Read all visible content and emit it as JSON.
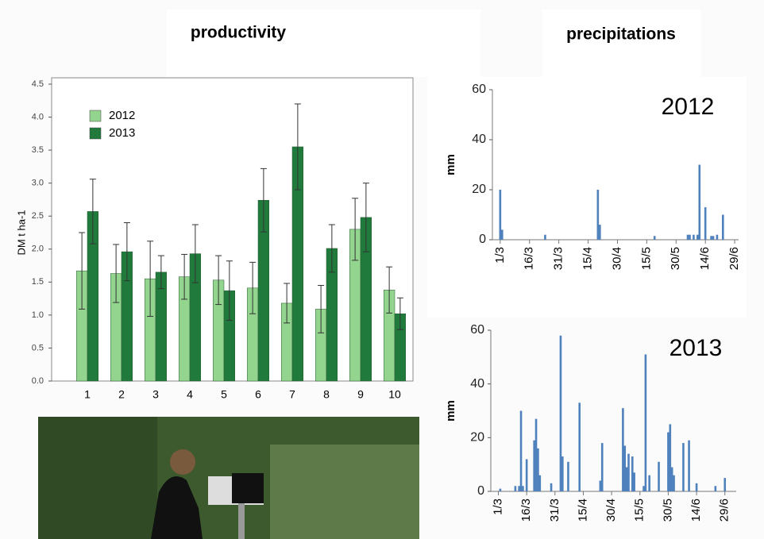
{
  "header": {
    "left": "productivity",
    "right": "precipitations"
  },
  "chart_data": [
    {
      "type": "bar",
      "ylabel": "DM t ha-1",
      "categories": [
        "1",
        "2",
        "3",
        "4",
        "5",
        "6",
        "7",
        "8",
        "9",
        "10"
      ],
      "series": [
        {
          "name": "2012",
          "color": "#93d48f",
          "values": [
            1.67,
            1.63,
            1.55,
            1.58,
            1.53,
            1.41,
            1.18,
            1.09,
            2.3,
            1.38
          ],
          "errors": [
            0.58,
            0.44,
            0.57,
            0.34,
            0.37,
            0.39,
            0.3,
            0.36,
            0.47,
            0.35
          ]
        },
        {
          "name": "2013",
          "color": "#1f7a3c",
          "values": [
            2.57,
            1.96,
            1.65,
            1.93,
            1.37,
            2.74,
            3.55,
            2.01,
            2.48,
            1.02
          ],
          "errors": [
            0.49,
            0.44,
            0.25,
            0.44,
            0.45,
            0.48,
            0.65,
            0.36,
            0.52,
            0.24
          ]
        }
      ],
      "ylim": [
        0,
        4.5
      ],
      "yticks": [
        {
          "value": 0,
          "label": "0.0"
        },
        0.5,
        {
          "value": 1,
          "label": "1.0"
        },
        1.5,
        {
          "value": 2,
          "label": "2.0"
        },
        2.5,
        {
          "value": 3,
          "label": "3.0"
        },
        3.5,
        {
          "value": 4,
          "label": "4.0"
        },
        4.5
      ],
      "legend": "upper left"
    },
    {
      "type": "bar",
      "title": "2012",
      "ylabel": "mm",
      "color": "#4f81bd",
      "x": [
        0,
        1,
        23,
        50,
        51,
        79,
        96,
        97,
        99,
        101,
        102,
        105,
        108,
        109,
        111,
        114
      ],
      "values": [
        20,
        4,
        2,
        20,
        6,
        1.5,
        2,
        2,
        2,
        2,
        30,
        13,
        1.5,
        1.5,
        2,
        10
      ],
      "xlim": [
        -4,
        122
      ],
      "xticks": [
        {
          "value": 0,
          "label": "1/3"
        },
        {
          "value": 15,
          "label": "16/3"
        },
        {
          "value": 30,
          "label": "31/3"
        },
        {
          "value": 45,
          "label": "15/4"
        },
        {
          "value": 60,
          "label": "30/4"
        },
        {
          "value": 75,
          "label": "15/5"
        },
        {
          "value": 90,
          "label": "30/5"
        },
        {
          "value": 105,
          "label": "14/6"
        },
        {
          "value": 120,
          "label": "29/6"
        }
      ],
      "ylim": [
        0,
        60
      ],
      "yticks": [
        0,
        20,
        40,
        60
      ]
    },
    {
      "type": "bar",
      "title": "2013",
      "ylabel": "mm",
      "color": "#4f81bd",
      "x": [
        1,
        9,
        11,
        12,
        13,
        15,
        19,
        20,
        21,
        22,
        28,
        33,
        34,
        37,
        43,
        54,
        55,
        66,
        67,
        68,
        69,
        71,
        72,
        77,
        78,
        80,
        85,
        90,
        91,
        92,
        93,
        98,
        101,
        105,
        115,
        120
      ],
      "values": [
        1,
        2,
        2,
        30,
        2,
        12,
        19,
        27,
        16,
        6,
        3,
        58,
        13,
        11,
        33,
        4,
        18,
        31,
        17,
        9,
        14,
        13,
        7,
        2,
        51,
        6,
        11,
        22,
        25,
        9,
        6,
        18,
        19,
        3,
        2,
        5
      ],
      "xlim": [
        -4,
        126
      ],
      "xticks": [
        {
          "value": 0,
          "label": "1/3"
        },
        {
          "value": 15,
          "label": "16/3"
        },
        {
          "value": 30,
          "label": "31/3"
        },
        {
          "value": 45,
          "label": "15/4"
        },
        {
          "value": 60,
          "label": "30/4"
        },
        {
          "value": 75,
          "label": "15/5"
        },
        {
          "value": 90,
          "label": "30/5"
        },
        {
          "value": 105,
          "label": "14/6"
        },
        {
          "value": 120,
          "label": "29/6"
        }
      ],
      "ylim": [
        0,
        60
      ],
      "yticks": [
        0,
        20,
        40,
        60
      ]
    }
  ]
}
